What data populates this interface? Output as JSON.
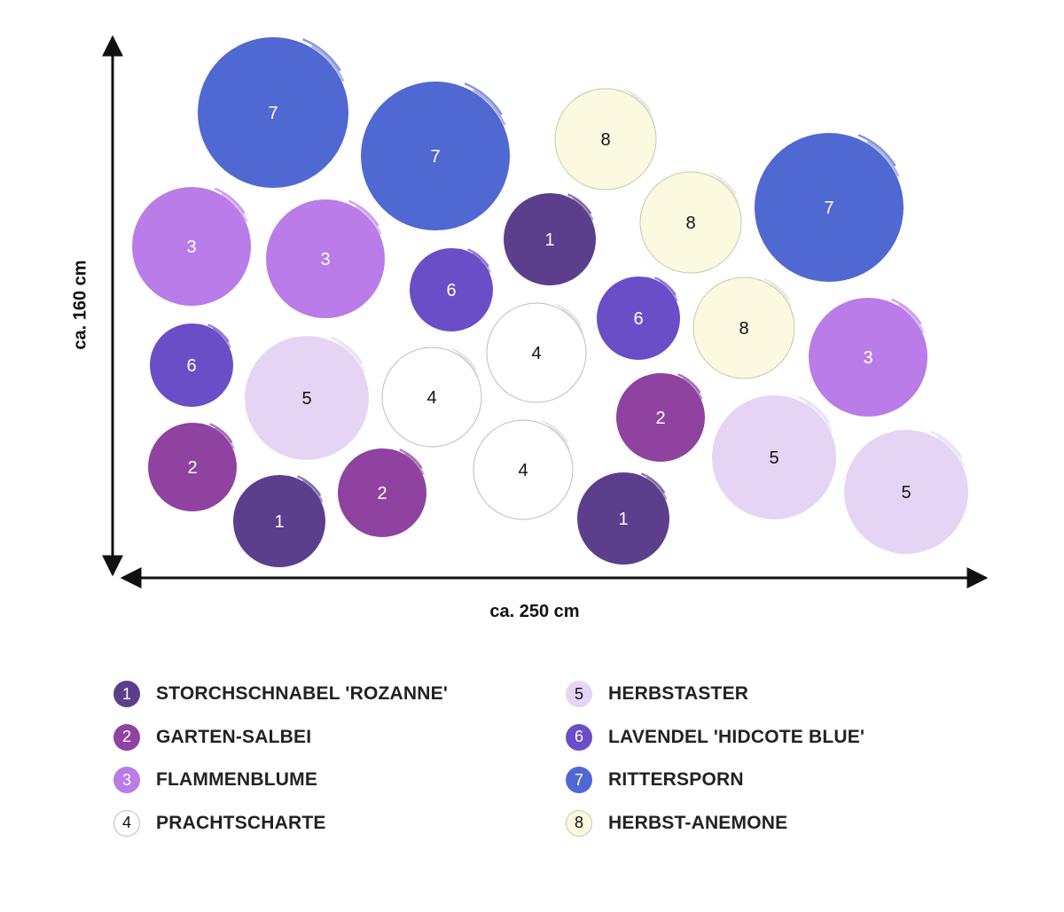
{
  "dimensions": {
    "width_label": "ca. 250 cm",
    "height_label": "ca. 160 cm"
  },
  "plants": [
    {
      "id": "1",
      "name": "STORCHSCHNABEL 'ROZANNE'",
      "fill": "#5b3f8c",
      "stroke": "none",
      "text_color": "#ffffff"
    },
    {
      "id": "2",
      "name": "GARTEN-SALBEI",
      "fill": "#8f42a0",
      "stroke": "none",
      "text_color": "#ffffff"
    },
    {
      "id": "3",
      "name": "FLAMMENBLUME",
      "fill": "#b97ce8",
      "stroke": "none",
      "text_color": "#ffffff"
    },
    {
      "id": "4",
      "name": "PRACHTSCHARTE",
      "fill": "#ffffff",
      "stroke": "#bdbdbd",
      "text_color": "#111111"
    },
    {
      "id": "5",
      "name": "HERBSTASTER",
      "fill": "#e6d4f5",
      "stroke": "none",
      "text_color": "#111111"
    },
    {
      "id": "6",
      "name": "LAVENDEL 'HIDCOTE BLUE'",
      "fill": "#6a4ec8",
      "stroke": "none",
      "text_color": "#ffffff"
    },
    {
      "id": "7",
      "name": "RITTERSPORN",
      "fill": "#5068d2",
      "stroke": "none",
      "text_color": "#ffffff"
    },
    {
      "id": "8",
      "name": "HERBST-ANEMONE",
      "fill": "#fbfae0",
      "stroke": "#c9c7a8",
      "text_color": "#111111"
    }
  ]
}
